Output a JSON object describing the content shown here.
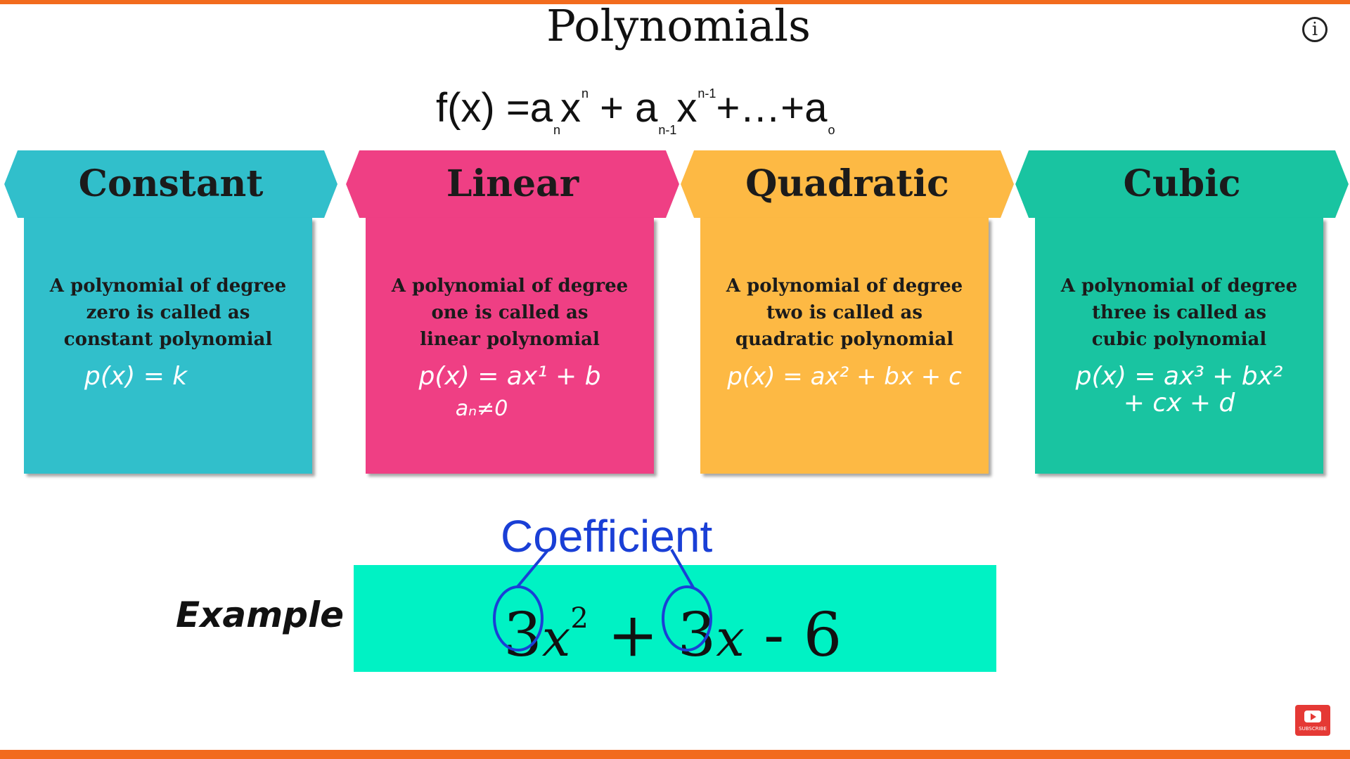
{
  "title": "Polynomials",
  "formula": {
    "lhs": "f(x) = ",
    "t1": "a",
    "t1_sub": "n",
    "t1_x": "x",
    "t1_sup": "n",
    "plus1": " + ",
    "t2": "a",
    "t2_sub": "n-1",
    "t2_x": "x",
    "t2_sup": "n-1",
    "mid": "+…+",
    "t3": "a",
    "t3_sub": "o"
  },
  "cards": [
    {
      "name": "Constant",
      "color": "#31bfcb",
      "desc": [
        "A polynomial of degree",
        "zero is called as",
        "constant polynomial"
      ],
      "eq": "p(x) = k",
      "eq2": "",
      "cond": "",
      "eq_color": "#ffffff"
    },
    {
      "name": "Linear",
      "color": "#ef3f84",
      "desc": [
        "A polynomial of degree",
        "one is called as",
        "linear polynomial"
      ],
      "eq": "p(x) = ax¹ + b",
      "eq2": "",
      "cond": "aₙ≠0",
      "eq_color": "#ffffff"
    },
    {
      "name": "Quadratic",
      "color": "#fdb944",
      "desc": [
        "A polynomial of degree",
        "two is called as",
        "quadratic polynomial"
      ],
      "eq": "p(x) = ax² + bx + c",
      "eq2": "",
      "cond": "",
      "eq_color": "#ffffff"
    },
    {
      "name": "Cubic",
      "color": "#19c4a1",
      "desc": [
        "A polynomial of degree",
        "three is called as",
        "cubic polynomial"
      ],
      "eq": "p(x) = ax³ + bx²",
      "eq2": "+ cx + d",
      "cond": "",
      "eq_color": "#ffffff"
    }
  ],
  "example": {
    "label": "Example",
    "coefficient_label": "Coefficient",
    "c1": "3",
    "v1": "x",
    "p1": "2",
    "op": " + ",
    "c2": "3",
    "v2": "x",
    "tail": " - 6"
  },
  "colors": {
    "accent": "#f26b1d",
    "annotation": "#1a3fd6",
    "example_bg": "#00f2c4",
    "subscribe": "#e53935"
  },
  "icons": {
    "info": "info-icon",
    "subscribe": "youtube-subscribe-icon"
  },
  "subscribe_label": "SUBSCRIBE"
}
